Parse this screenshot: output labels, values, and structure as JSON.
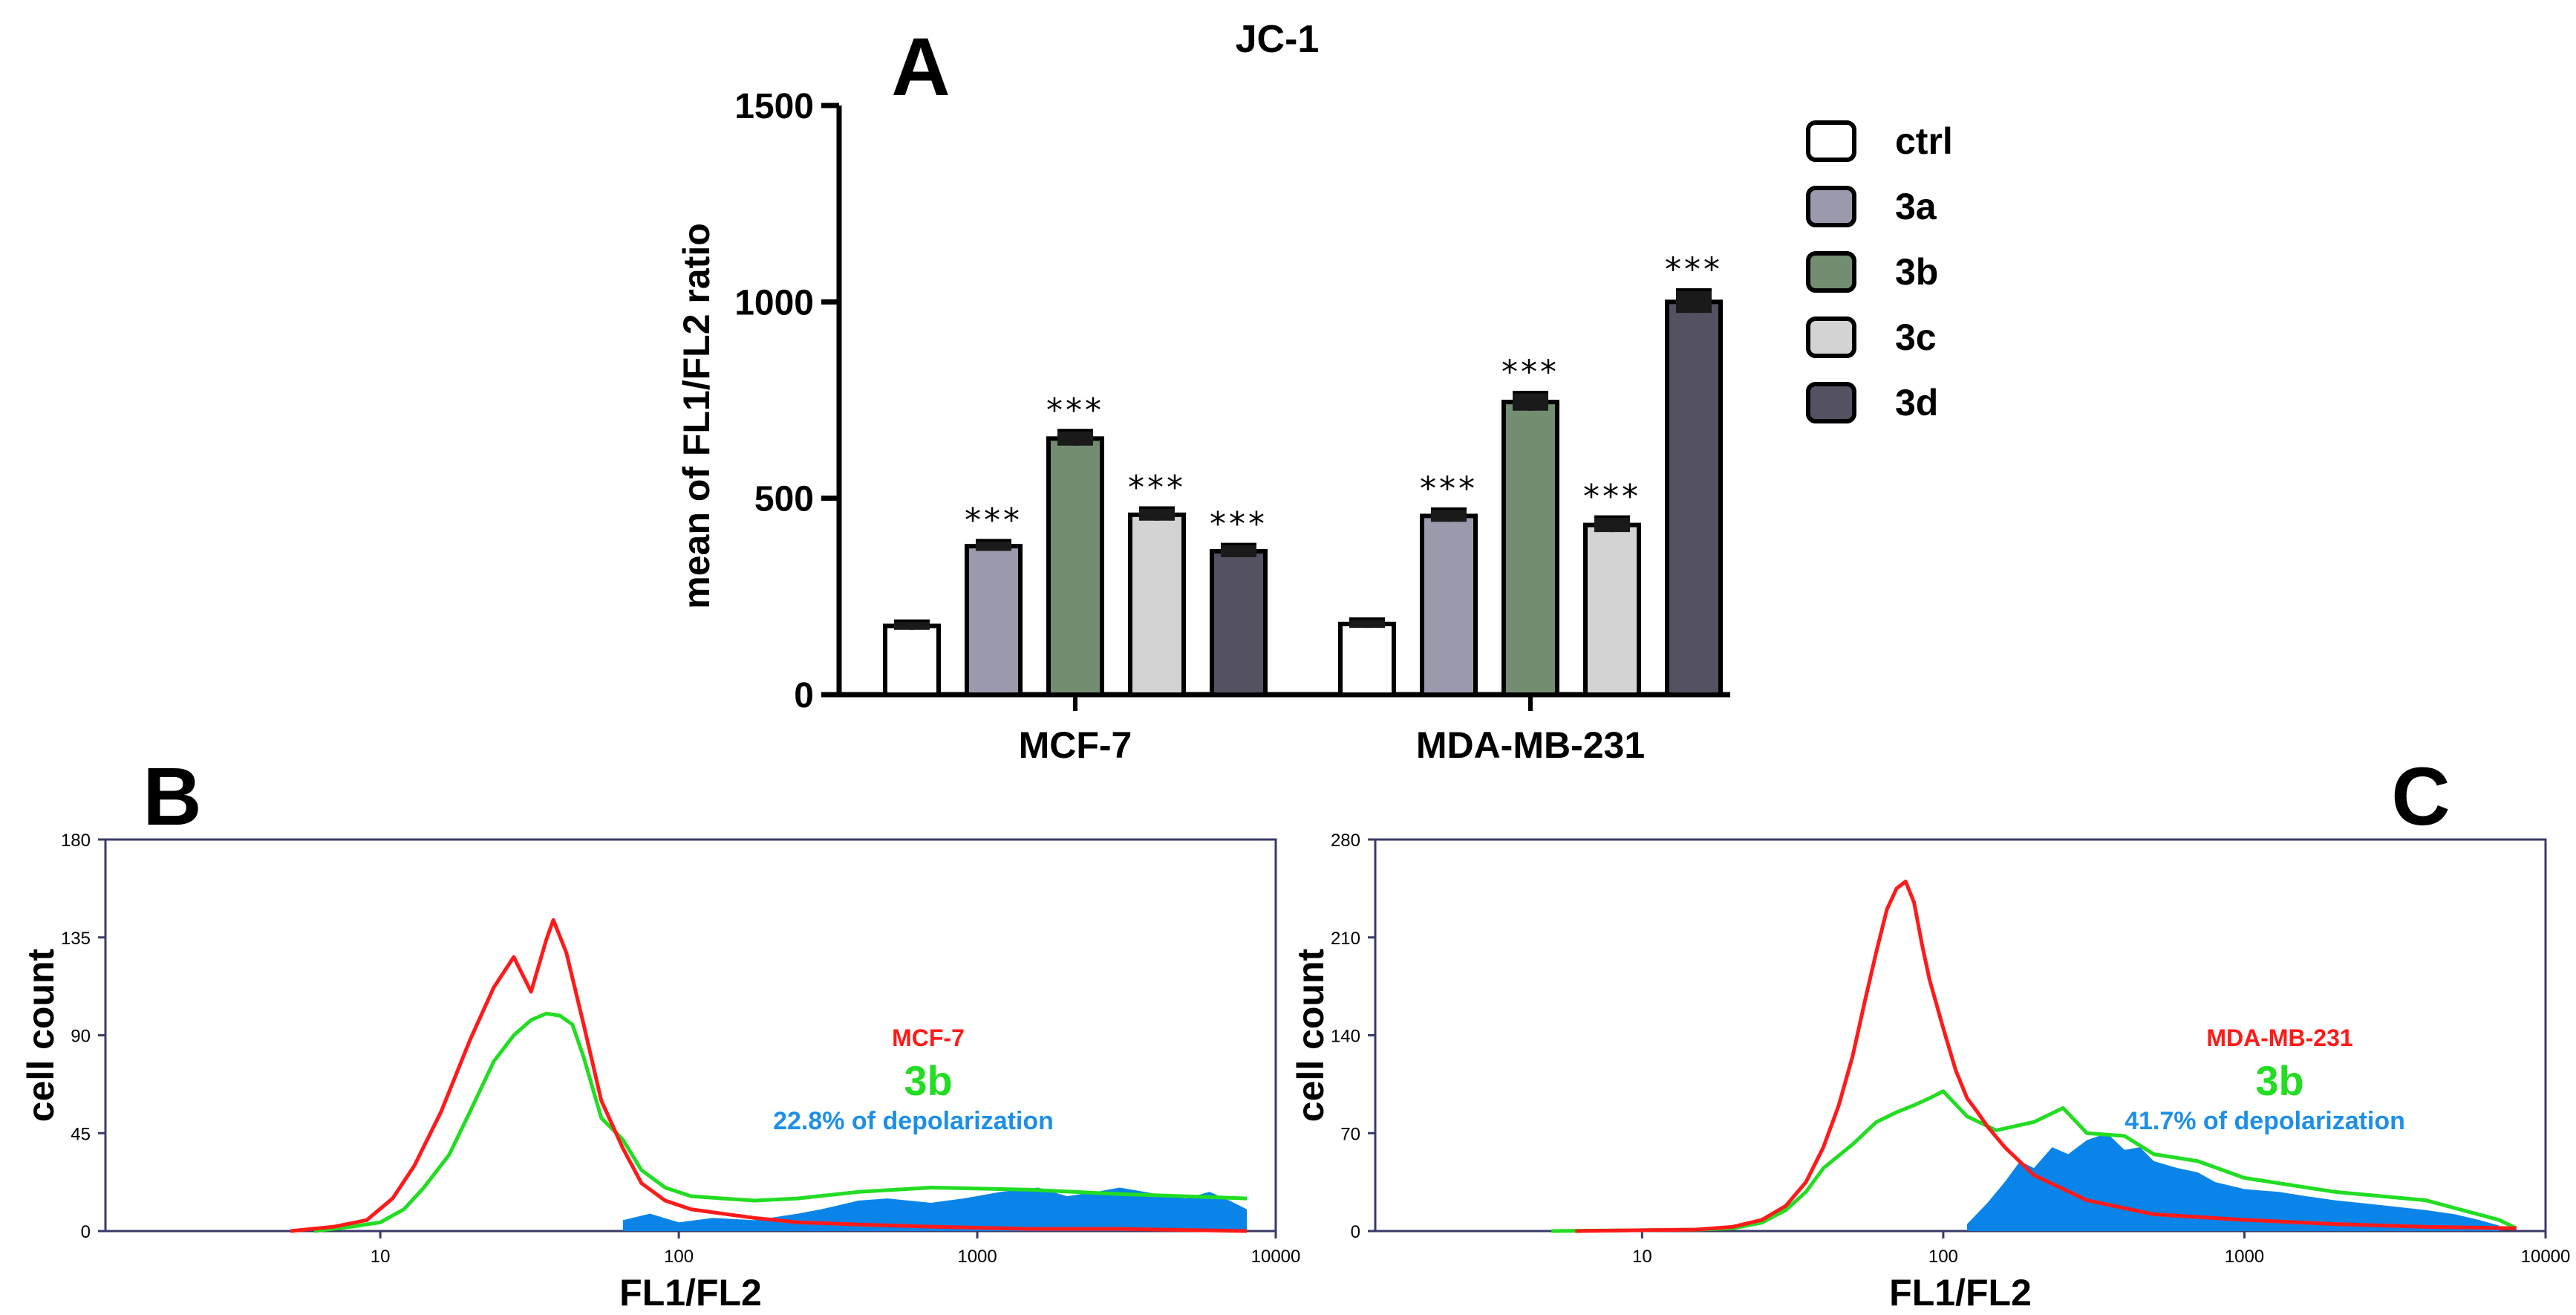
{
  "chart_data": [
    {
      "panel": "A",
      "type": "bar",
      "title": "JC-1",
      "xlabel": "",
      "ylabel": "mean of FL1/FL2 ratio",
      "ylim": [
        0,
        1500
      ],
      "yticks": [
        "0",
        "500",
        "1000",
        "1500"
      ],
      "categories": [
        "MCF-7",
        "MDA-MB-231"
      ],
      "series": [
        {
          "name": "ctrl",
          "color": "#ffffff",
          "values": [
            175,
            180
          ],
          "errors": [
            10,
            10
          ],
          "sig": [
            "",
            ""
          ]
        },
        {
          "name": "3a",
          "color": "#9b9aac",
          "values": [
            378,
            455
          ],
          "errors": [
            12,
            15
          ],
          "sig": [
            "***",
            "***"
          ]
        },
        {
          "name": "3b",
          "color": "#738d70",
          "values": [
            652,
            745
          ],
          "errors": [
            18,
            22
          ],
          "sig": [
            "***",
            "***"
          ]
        },
        {
          "name": "3c",
          "color": "#d3d3d3",
          "values": [
            458,
            432
          ],
          "errors": [
            15,
            18
          ],
          "sig": [
            "***",
            "***"
          ]
        },
        {
          "name": "3d",
          "color": "#545262",
          "values": [
            365,
            1000
          ],
          "errors": [
            15,
            28
          ],
          "sig": [
            "***",
            "***"
          ]
        }
      ],
      "legend_position": "right"
    },
    {
      "panel": "B",
      "type": "histogram",
      "xscale": "log",
      "xlabel": "FL1/FL2",
      "ylabel": "cell count",
      "xticks": [
        "10",
        "100",
        "1000",
        "10000"
      ],
      "ylim": [
        0,
        180
      ],
      "yticks": [
        "0",
        "45",
        "90",
        "135",
        "180"
      ],
      "cell_line": "MCF-7",
      "compound": "3b",
      "depolarization": "22.8% of depolarization",
      "colors": {
        "control": "#ff1a1a",
        "treated": "#22dd22",
        "depolarized": "#0a84e8",
        "cell_line": "#ff1a1a",
        "compound": "#22dd22",
        "depolarization": "#1e8fe8"
      },
      "control_curve": {
        "x": [
          5,
          7,
          9,
          11,
          13,
          16,
          20,
          24,
          28,
          32,
          36,
          38,
          42,
          48,
          55,
          65,
          75,
          90,
          110,
          140,
          180,
          250,
          400,
          700,
          1500,
          3000,
          8000
        ],
        "y": [
          0,
          2,
          5,
          15,
          30,
          55,
          88,
          112,
          126,
          110,
          134,
          143,
          128,
          95,
          60,
          38,
          22,
          14,
          10,
          8,
          6,
          4,
          3,
          2,
          1,
          1,
          0
        ]
      },
      "treated_curve": {
        "x": [
          6,
          8,
          10,
          12,
          14,
          17,
          20,
          24,
          28,
          32,
          36,
          40,
          44,
          48,
          55,
          65,
          75,
          90,
          110,
          140,
          180,
          250,
          400,
          700,
          1500,
          3000,
          8000
        ],
        "y": [
          0,
          2,
          4,
          10,
          20,
          35,
          55,
          78,
          90,
          97,
          100,
          99,
          95,
          80,
          52,
          42,
          28,
          20,
          16,
          15,
          14,
          15,
          18,
          20,
          19,
          17,
          15
        ]
      },
      "depolarized_fill": {
        "x": [
          65,
          80,
          100,
          130,
          180,
          250,
          300,
          400,
          500,
          700,
          900,
          1200,
          1600,
          2000,
          2500,
          3000,
          4000,
          5000,
          6000,
          7000,
          8000
        ],
        "y": [
          5,
          8,
          4,
          6,
          5,
          8,
          10,
          14,
          15,
          13,
          15,
          18,
          20,
          16,
          18,
          20,
          17,
          15,
          18,
          14,
          10
        ]
      }
    },
    {
      "panel": "C",
      "type": "histogram",
      "xscale": "log",
      "xlabel": "FL1/FL2",
      "ylabel": "cell count",
      "xticks": [
        "10",
        "100",
        "1000",
        "10000"
      ],
      "ylim": [
        0,
        280
      ],
      "yticks": [
        "0",
        "70",
        "140",
        "210",
        "280"
      ],
      "cell_line": "MDA-MB-231",
      "compound": "3b",
      "depolarization": "41.7% of depolarization",
      "colors": {
        "control": "#ff1a1a",
        "treated": "#22dd22",
        "depolarized": "#0a84e8",
        "cell_line": "#ff1a1a",
        "compound": "#22dd22",
        "depolarization": "#1e8fe8"
      },
      "control_curve": {
        "x": [
          6,
          15,
          20,
          25,
          30,
          35,
          40,
          45,
          50,
          55,
          60,
          65,
          70,
          75,
          80,
          85,
          90,
          100,
          110,
          120,
          130,
          140,
          160,
          200,
          300,
          500,
          1000,
          2000,
          4000,
          8000
        ],
        "y": [
          0,
          1,
          3,
          8,
          18,
          35,
          60,
          90,
          125,
          165,
          200,
          230,
          245,
          250,
          235,
          205,
          180,
          145,
          115,
          95,
          85,
          75,
          60,
          40,
          22,
          12,
          8,
          5,
          3,
          2
        ]
      },
      "treated_curve": {
        "x": [
          5,
          15,
          20,
          25,
          30,
          35,
          40,
          50,
          60,
          70,
          80,
          90,
          100,
          120,
          150,
          200,
          250,
          300,
          400,
          500,
          700,
          1000,
          2000,
          4000,
          7000,
          8000
        ],
        "y": [
          0,
          1,
          2,
          6,
          15,
          28,
          45,
          62,
          78,
          85,
          90,
          95,
          100,
          82,
          72,
          78,
          88,
          70,
          68,
          55,
          50,
          38,
          28,
          22,
          8,
          2
        ]
      },
      "depolarized_fill": {
        "x": [
          120,
          140,
          160,
          180,
          200,
          230,
          260,
          300,
          350,
          400,
          450,
          500,
          600,
          700,
          800,
          1000,
          1300,
          1600,
          2000,
          3000,
          4000,
          5000,
          6000,
          7000
        ],
        "y": [
          5,
          20,
          35,
          50,
          45,
          60,
          55,
          65,
          70,
          58,
          60,
          50,
          45,
          42,
          35,
          30,
          28,
          25,
          22,
          18,
          15,
          12,
          8,
          4
        ]
      }
    }
  ]
}
